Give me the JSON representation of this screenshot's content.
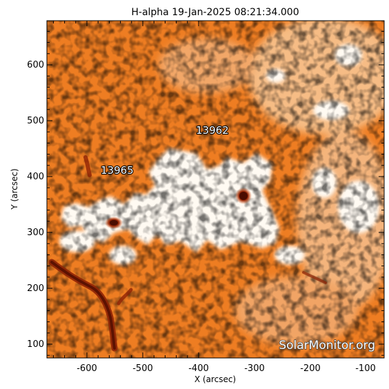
{
  "title": "H-alpha 19-Jan-2025 08:21:34.000",
  "x_axis": {
    "label": "X (arcsec)",
    "ticks": [
      "-600",
      "-500",
      "-400",
      "-300",
      "-200",
      "-100"
    ]
  },
  "y_axis": {
    "label": "Y (arcsec)",
    "ticks": [
      "100",
      "200",
      "300",
      "400",
      "500",
      "600"
    ]
  },
  "active_regions": [
    {
      "id": "13962",
      "label": "13962"
    },
    {
      "id": "13965",
      "label": "13965"
    }
  ],
  "watermark": "SolarMonitor.org",
  "colors": {
    "background": "#ffffff",
    "chromosphere": "#f07a1c",
    "plage": "#fff4e6",
    "filament": "#9c2a08",
    "sunspot": "#7a1a04"
  }
}
